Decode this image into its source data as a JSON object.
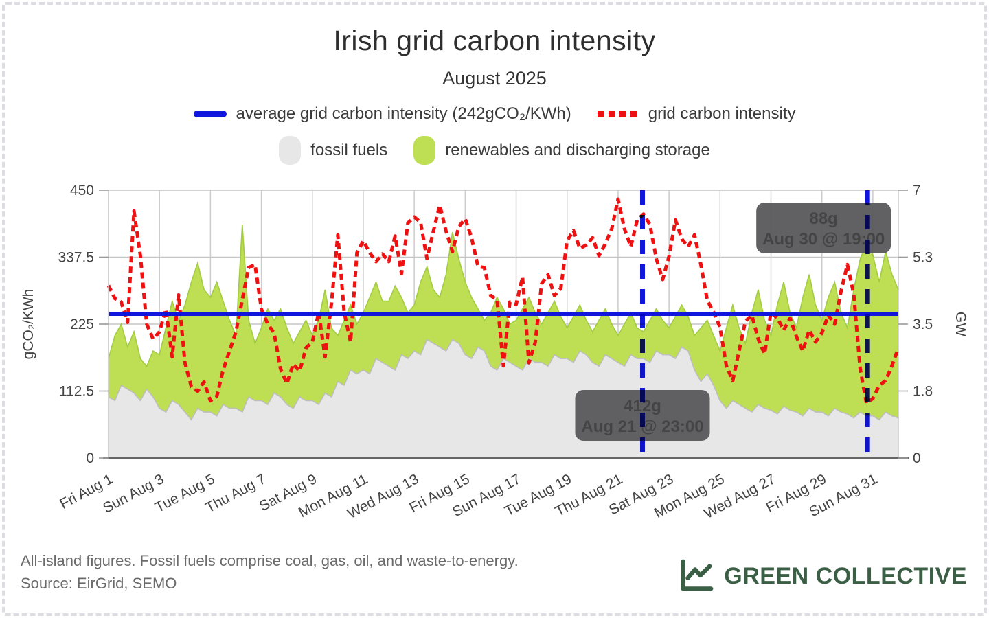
{
  "page": {
    "title": "Irish grid carbon intensity",
    "subtitle": "August 2025"
  },
  "legend": {
    "avg": {
      "label": "average grid carbon intensity (242gCO₂/KWh)",
      "color": "#1016dc"
    },
    "intensity": {
      "label": "grid carbon intensity",
      "color": "#ee1111"
    },
    "fossil": {
      "label": "fossil fuels",
      "color": "#e7e7e7"
    },
    "renewables": {
      "label": "renewables and discharging storage",
      "color": "#bede54"
    }
  },
  "footer": {
    "line1": "All-island figures. Fossil fuels comprise coal, gas, oil, and waste-to-energy.",
    "line2": "Source: EirGrid, SEMO"
  },
  "brand": {
    "name": "GREEN COLLECTIVE",
    "color": "#3b5f45"
  },
  "chart_data": {
    "type": "area",
    "title": "Irish grid carbon intensity",
    "subtitle": "August 2025",
    "x_start": "Aug 1 00:00",
    "x_end": "Sep 1 00:00",
    "x_step_hours": 6,
    "x_total_days": 31,
    "x_tick_days": [
      0,
      2,
      4,
      6,
      8,
      10,
      12,
      14,
      16,
      18,
      20,
      22,
      24,
      26,
      28,
      30
    ],
    "x_tick_labels": [
      "Fri Aug 1",
      "Sun Aug 3",
      "Tue Aug 5",
      "Thu Aug 7",
      "Sat Aug 9",
      "Mon Aug 11",
      "Wed Aug 13",
      "Fri Aug 15",
      "Sun Aug 17",
      "Tue Aug 19",
      "Thu Aug 21",
      "Sat Aug 23",
      "Mon Aug 25",
      "Wed Aug 27",
      "Fri Aug 29",
      "Sun Aug 31"
    ],
    "left_axis": {
      "label": "gCO₂/KWh",
      "range": [
        0,
        450
      ],
      "tick_values": [
        0,
        112.5,
        225,
        337.5,
        450
      ],
      "tick_labels": [
        "0",
        "112.5",
        "225",
        "337.5",
        "450"
      ]
    },
    "right_axis": {
      "label": "GW",
      "range": [
        0,
        7
      ],
      "tick_values": [
        0,
        1.75,
        3.5,
        5.25,
        7
      ],
      "tick_labels": [
        "0",
        "1.8",
        "3.5",
        "5.3",
        "7"
      ]
    },
    "grid": true,
    "average_line": {
      "label": "average grid carbon intensity",
      "value": 242,
      "unit": "gCO₂/KWh",
      "color": "#1016dc"
    },
    "series": [
      {
        "name": "fossil fuels",
        "kind": "stacked-area",
        "axis": "right",
        "unit": "GW",
        "fill": "#e7e7e7",
        "edge": "#bdbdbd",
        "values": [
          1.6,
          1.5,
          1.9,
          1.8,
          1.7,
          1.5,
          1.8,
          1.6,
          1.3,
          1.2,
          1.5,
          1.4,
          1.2,
          1.0,
          1.3,
          1.2,
          1.2,
          1.1,
          1.4,
          1.3,
          1.3,
          1.2,
          1.6,
          1.5,
          1.5,
          1.4,
          1.7,
          1.6,
          1.4,
          1.3,
          1.6,
          1.5,
          1.5,
          1.4,
          1.7,
          1.6,
          2.0,
          1.9,
          2.3,
          2.2,
          2.3,
          2.2,
          2.6,
          2.5,
          2.4,
          2.3,
          2.7,
          2.6,
          2.8,
          2.7,
          3.1,
          3.0,
          2.9,
          2.8,
          3.1,
          3.0,
          2.7,
          2.6,
          2.9,
          2.8,
          2.4,
          2.3,
          2.6,
          2.5,
          2.4,
          2.3,
          2.6,
          2.5,
          2.5,
          2.4,
          2.7,
          2.6,
          2.6,
          2.5,
          2.8,
          2.7,
          2.5,
          2.4,
          2.7,
          2.6,
          2.5,
          2.4,
          2.7,
          2.6,
          2.6,
          2.5,
          2.8,
          2.7,
          2.7,
          2.6,
          2.9,
          2.8,
          2.3,
          2.0,
          2.2,
          1.9,
          1.5,
          1.3,
          1.5,
          1.4,
          1.3,
          1.2,
          1.4,
          1.3,
          1.25,
          1.15,
          1.35,
          1.25,
          1.2,
          1.1,
          1.3,
          1.2,
          1.2,
          1.1,
          1.3,
          1.2,
          1.15,
          1.05,
          1.2,
          1.1,
          1.1,
          1.0,
          1.2,
          1.1,
          1.05
        ]
      },
      {
        "name": "renewables and discharging storage",
        "kind": "stacked-area",
        "axis": "right",
        "unit": "GW",
        "fill": "#bede54",
        "edge": "#a2cc42",
        "values": [
          1.0,
          1.7,
          1.6,
          1.1,
          1.6,
          1.1,
          0.6,
          1.2,
          1.4,
          2.2,
          2.6,
          2.2,
          2.8,
          3.6,
          3.8,
          3.2,
          3.0,
          3.5,
          2.7,
          2.3,
          1.9,
          4.9,
          2.0,
          1.5,
          1.9,
          2.5,
          1.9,
          2.3,
          2.0,
          1.7,
          1.7,
          2.1,
          1.7,
          2.2,
          2.7,
          1.8,
          1.2,
          1.7,
          1.7,
          1.3,
          1.5,
          2.0,
          2.0,
          1.6,
          1.7,
          2.2,
          1.5,
          1.2,
          1.2,
          1.9,
          1.9,
          1.4,
          1.3,
          2.0,
          2.8,
          2.2,
          1.9,
          1.6,
          1.0,
          0.8,
          1.4,
          1.9,
          1.3,
          1.0,
          1.2,
          1.6,
          1.6,
          1.3,
          1.0,
          1.4,
          1.4,
          1.1,
          0.8,
          1.2,
          1.2,
          0.9,
          0.8,
          1.2,
          1.2,
          0.9,
          0.7,
          1.1,
          1.1,
          0.8,
          0.7,
          1.1,
          1.1,
          0.9,
          0.7,
          1.1,
          1.1,
          0.9,
          0.9,
          1.4,
          1.4,
          1.3,
          1.3,
          2.1,
          2.5,
          2.0,
          1.7,
          2.6,
          3.0,
          2.3,
          1.95,
          2.85,
          3.25,
          2.55,
          2.2,
          3.1,
          3.5,
          2.8,
          2.4,
          3.1,
          3.3,
          2.6,
          2.25,
          3.35,
          4.0,
          4.5,
          4.2,
          3.6,
          4.2,
          3.7,
          3.35
        ]
      },
      {
        "name": "grid carbon intensity",
        "kind": "dashed-line",
        "axis": "left",
        "unit": "gCO₂/KWh",
        "color": "#ee1111",
        "values": [
          290,
          268,
          262,
          228,
          415,
          340,
          225,
          200,
          212,
          250,
          170,
          274,
          160,
          120,
          112,
          128,
          96,
          104,
          148,
          180,
          212,
          266,
          320,
          325,
          250,
          225,
          210,
          150,
          125,
          158,
          146,
          185,
          195,
          245,
          170,
          260,
          375,
          245,
          195,
          345,
          365,
          345,
          330,
          343,
          330,
          373,
          310,
          395,
          405,
          396,
          335,
          381,
          425,
          381,
          347,
          389,
          402,
          370,
          322,
          320,
          273,
          266,
          155,
          262,
          258,
          304,
          160,
          195,
          293,
          308,
          273,
          285,
          365,
          382,
          352,
          358,
          370,
          340,
          360,
          385,
          435,
          385,
          355,
          400,
          410,
          392,
          335,
          300,
          339,
          400,
          368,
          355,
          375,
          325,
          265,
          245,
          220,
          155,
          130,
          180,
          230,
          240,
          200,
          175,
          245,
          235,
          215,
          235,
          204,
          180,
          215,
          195,
          210,
          240,
          225,
          280,
          325,
          275,
          150,
          92,
          100,
          122,
          130,
          155,
          185
        ]
      }
    ],
    "markers": [
      {
        "day": 21,
        "hour": 23,
        "value_label": "412g",
        "time_label": "Aug 21 @ 23:00",
        "box_align": "center",
        "line_color": "#1016dc",
        "box_color": "#59595c"
      },
      {
        "day": 30,
        "hour": 19,
        "value_label": "88g",
        "time_label": "Aug 30 @ 19:00",
        "box_align": "line-right",
        "line_color": "#1016dc",
        "box_color": "#59595c"
      }
    ]
  }
}
